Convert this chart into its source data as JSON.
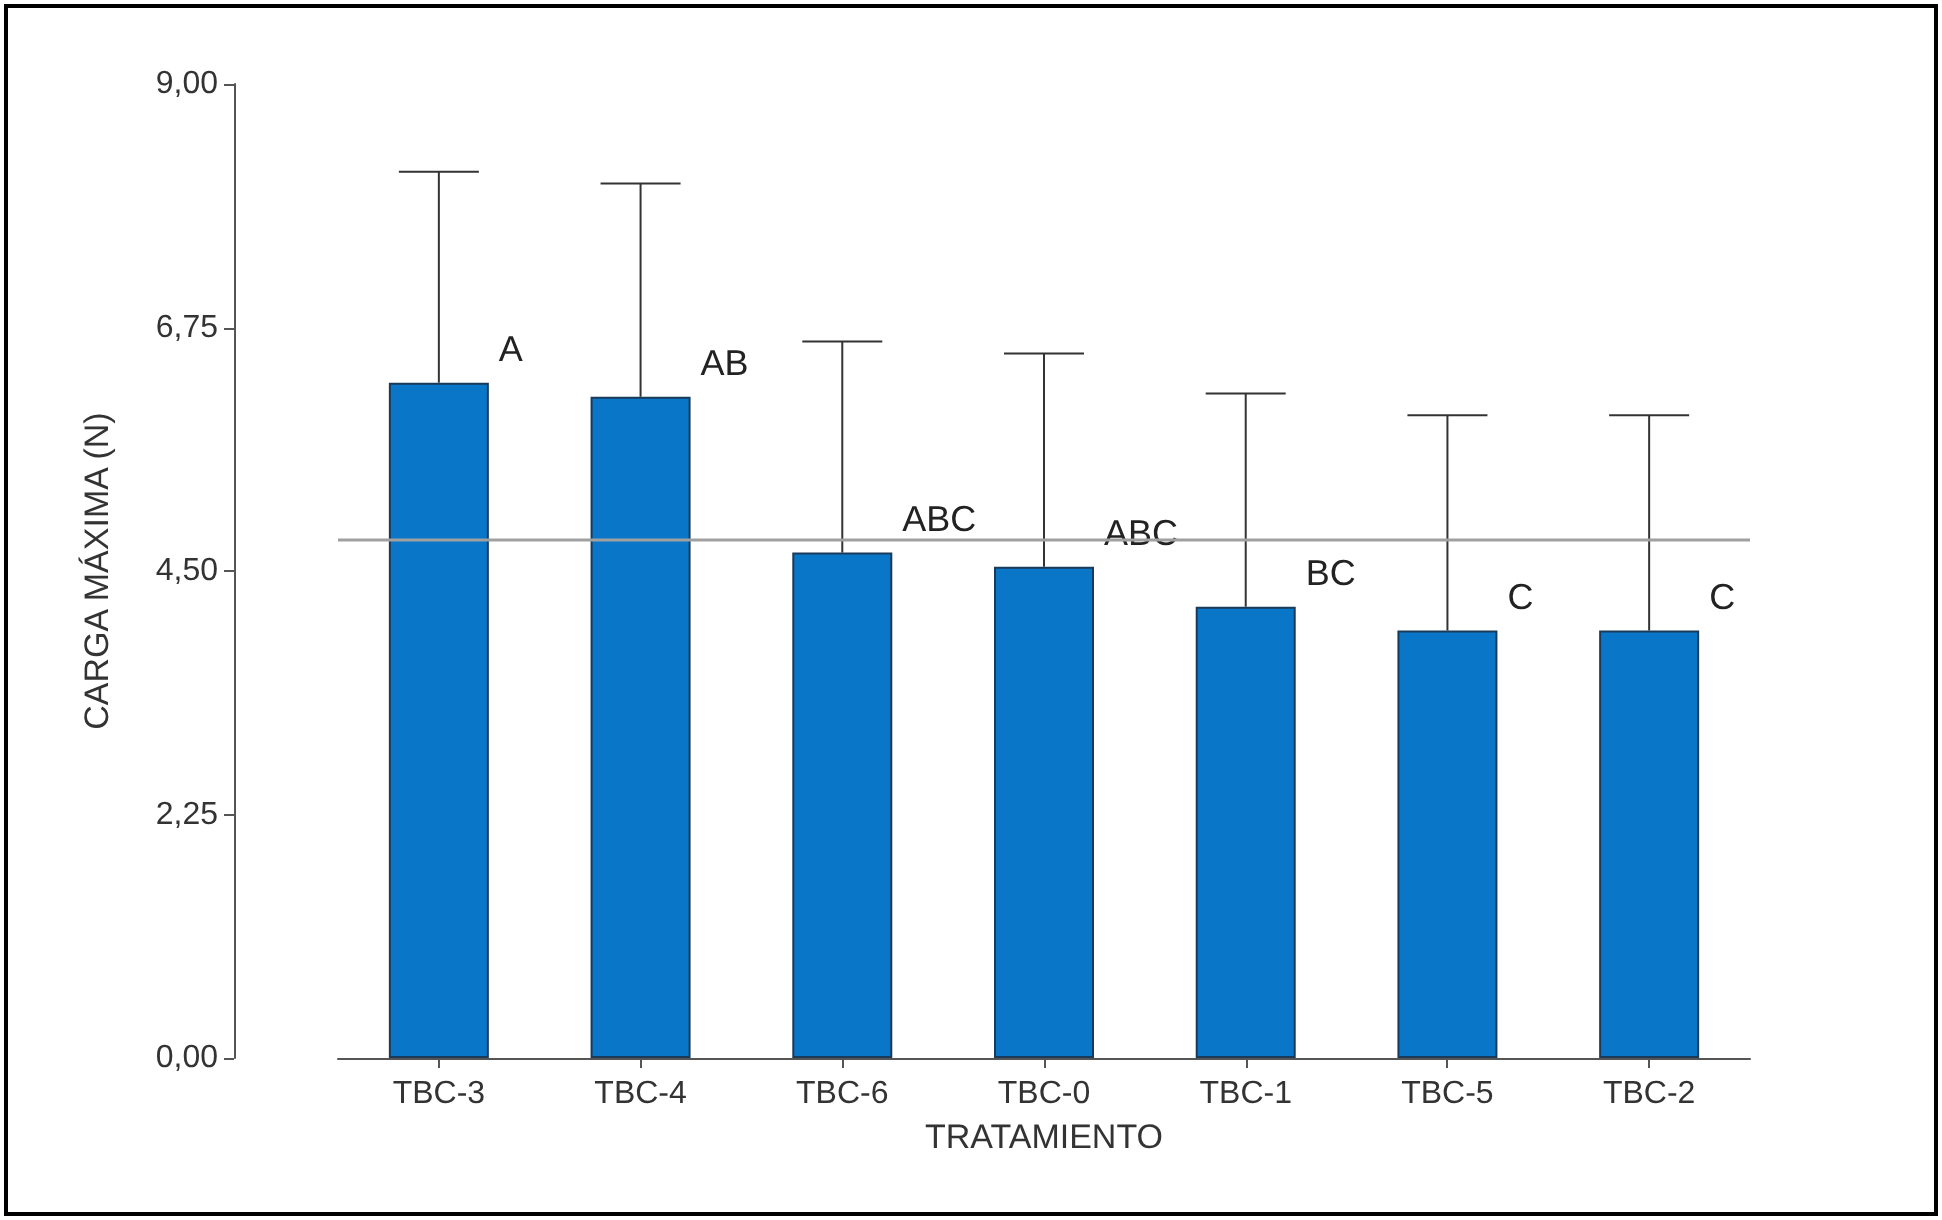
{
  "chart_data": {
    "type": "bar",
    "xlabel": "TRATAMIENTO",
    "ylabel": "CARGA MÁXIMA (N)",
    "categories": [
      "TBC-3",
      "TBC-4",
      "TBC-6",
      "TBC-0",
      "TBC-1",
      "TBC-5",
      "TBC-2"
    ],
    "values": [
      6.24,
      6.11,
      4.67,
      4.54,
      4.17,
      3.95,
      3.95
    ],
    "errors": [
      [
        6.24,
        8.19
      ],
      [
        6.11,
        8.08
      ],
      [
        4.67,
        6.62
      ],
      [
        4.54,
        6.51
      ],
      [
        4.17,
        6.14
      ],
      [
        3.95,
        5.94
      ],
      [
        3.95,
        5.94
      ]
    ],
    "color": "#0a76c8",
    "ylim": [
      0,
      9
    ],
    "yticks": [
      {
        "value": 0,
        "label": "0,00"
      },
      {
        "value": 2.25,
        "label": "2,25"
      },
      {
        "value": 4.5,
        "label": "4,50"
      },
      {
        "value": 6.75,
        "label": "6,75"
      },
      {
        "value": 9,
        "label": "9,00"
      }
    ],
    "ref_lines": [
      {
        "axis": "y",
        "value": 4.8,
        "color": "#a0a0a0"
      }
    ],
    "annotations": [
      "A",
      "AB",
      "ABC",
      "ABC",
      "BC",
      "C",
      "C"
    ],
    "grid": false
  }
}
